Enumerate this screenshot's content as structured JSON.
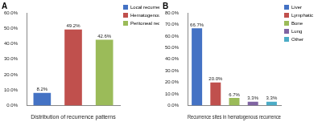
{
  "chart_data": [
    {
      "type": "bar",
      "title": "A",
      "xlabel": "Distribution of recurrence patterns",
      "categories": [
        "Local recurrence",
        "Hematogenous recurrence",
        "Peritoneal recurrence"
      ],
      "values": [
        8.2,
        49.2,
        42.6
      ],
      "value_labels": [
        "8.2%",
        "49.2%",
        "42.6%"
      ],
      "colors": [
        "#4472c4",
        "#c0504d",
        "#9bbb59"
      ],
      "ylim": [
        0,
        60
      ],
      "yticks": [
        {
          "value": 0,
          "label": "0.0%"
        },
        {
          "value": 10,
          "label": "10.0%"
        },
        {
          "value": 20,
          "label": "20.0%"
        },
        {
          "value": 30,
          "label": "30.0%"
        },
        {
          "value": 40,
          "label": "40.0%"
        },
        {
          "value": 50,
          "label": "50.0%"
        },
        {
          "value": 60,
          "label": "60.0%"
        }
      ],
      "grid": false,
      "legend": "right",
      "data_labels": true,
      "tick_labels": "y"
    },
    {
      "type": "bar",
      "title": "B",
      "xlabel": "Recurrence sites in hematogenous recurrence",
      "categories": [
        "Liver",
        "Lymphatic",
        "Bone",
        "Lung",
        "Other"
      ],
      "values": [
        66.7,
        20.0,
        6.7,
        3.3,
        3.3
      ],
      "value_labels": [
        "66.7%",
        "20.0%",
        "6.7%",
        "3.3%",
        "3.3%"
      ],
      "colors": [
        "#4472c4",
        "#c0504d",
        "#9bbb59",
        "#8064a2",
        "#4bacc6"
      ],
      "ylim": [
        0,
        80
      ],
      "yticks": [
        {
          "value": 0,
          "label": "0.0%"
        },
        {
          "value": 10,
          "label": "10.0%"
        },
        {
          "value": 20,
          "label": "20.0%"
        },
        {
          "value": 30,
          "label": "30.0%"
        },
        {
          "value": 40,
          "label": "40.0%"
        },
        {
          "value": 50,
          "label": "50.0%"
        },
        {
          "value": 60,
          "label": "60.0%"
        },
        {
          "value": 70,
          "label": "70.0%"
        },
        {
          "value": 80,
          "label": "80.0%"
        }
      ],
      "grid": false,
      "legend": "right",
      "data_labels": true,
      "tick_labels": "y"
    }
  ]
}
